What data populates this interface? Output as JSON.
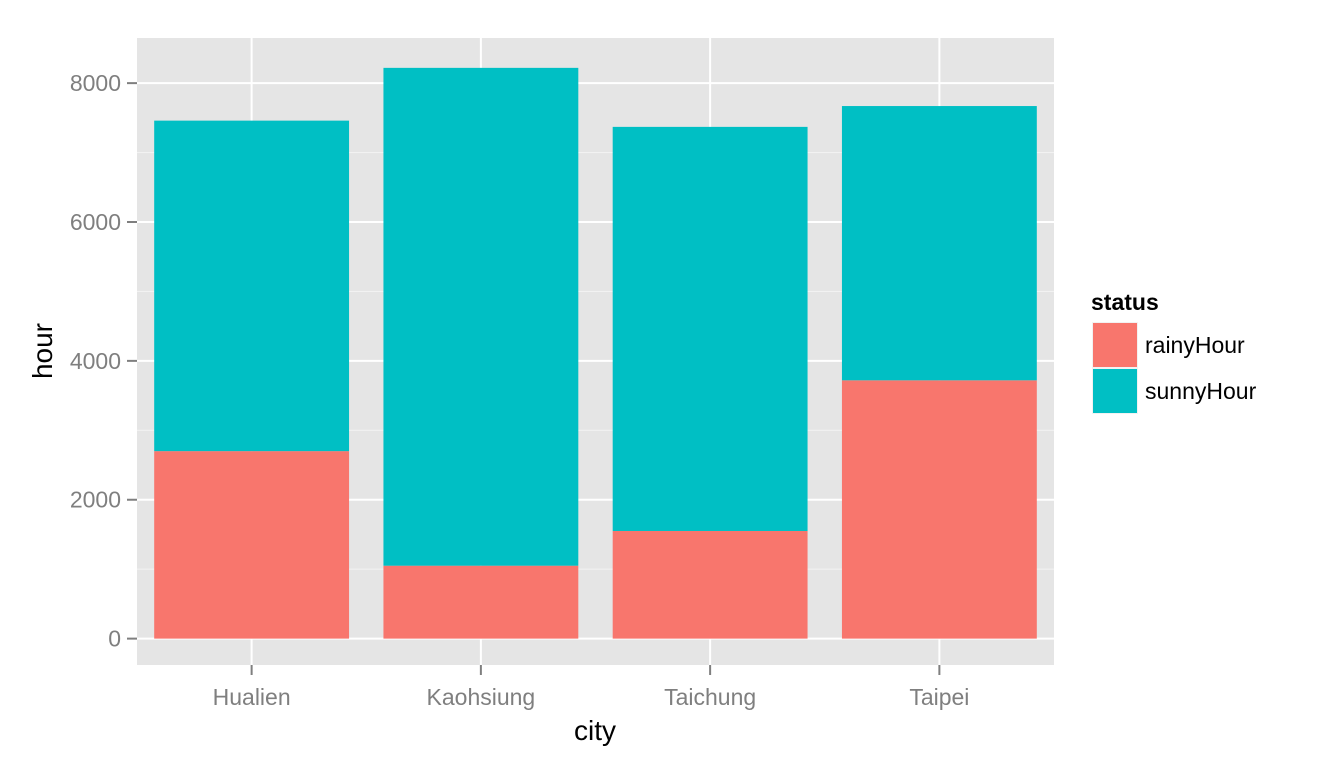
{
  "chart_data": {
    "type": "bar",
    "stacked": true,
    "title": "",
    "xlabel": "city",
    "ylabel": "hour",
    "categories": [
      "Hualien",
      "Kaohsiung",
      "Taichung",
      "Taipei"
    ],
    "series": [
      {
        "name": "rainyHour",
        "color": "#F8766D",
        "values": [
          2700,
          1050,
          1550,
          3720
        ]
      },
      {
        "name": "sunnyHour",
        "color": "#00BFC4",
        "values": [
          4760,
          7170,
          5820,
          3950
        ]
      }
    ],
    "ylim": [
      -380,
      8650
    ],
    "yticks": [
      0,
      2000,
      4000,
      6000,
      8000
    ],
    "ytick_labels": [
      "0",
      "2000",
      "4000",
      "6000",
      "8000"
    ],
    "grid": true,
    "legend": {
      "title": "status",
      "position": "right"
    },
    "colors": {
      "panel_background": "#E5E5E5",
      "grid_major": "#FFFFFF",
      "grid_minor": "#F2F2F2",
      "tick_label": "#7F7F7F"
    }
  }
}
